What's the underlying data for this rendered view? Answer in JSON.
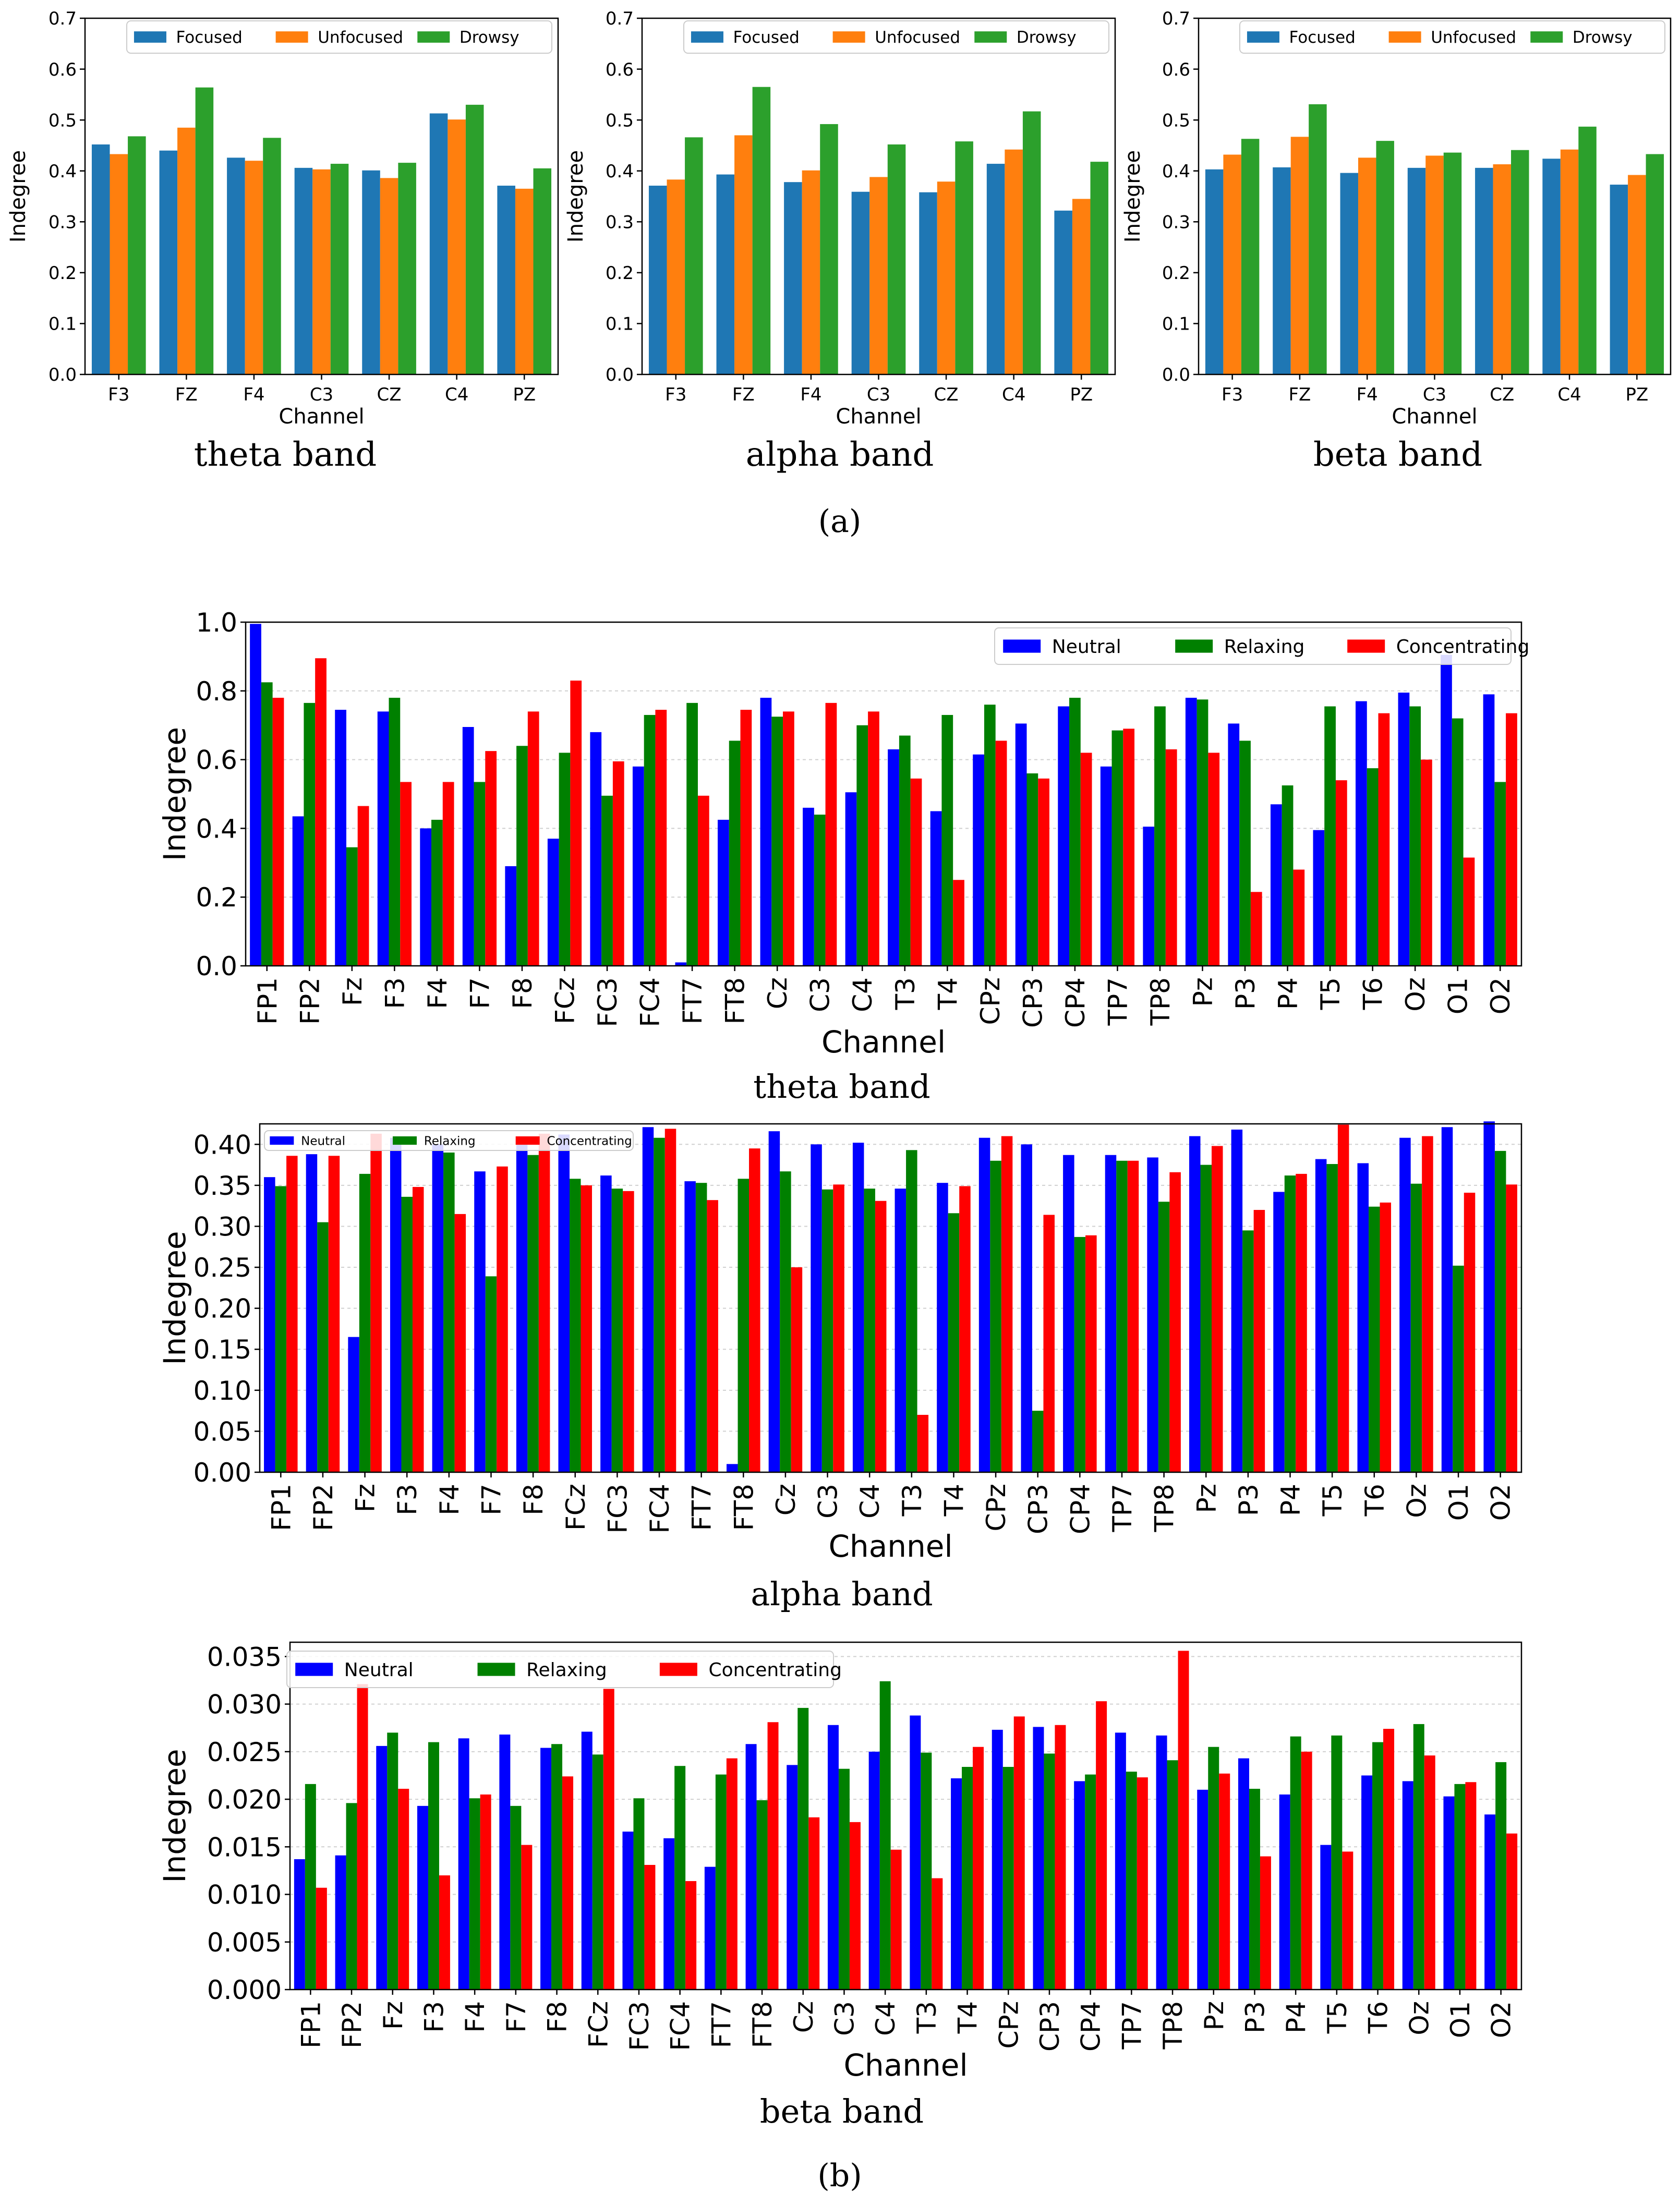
{
  "figure_labels": {
    "a": "(a)",
    "b": "(b)"
  },
  "colors": {
    "focused": "#1f77b4",
    "unfocused": "#ff7f0e",
    "drowsy": "#2ca02c",
    "neutral": "#0000ff",
    "relaxing": "#008000",
    "concentrating": "#ff0000"
  },
  "chart_data": [
    {
      "id": "a_theta",
      "type": "bar",
      "title": "",
      "caption": "theta band",
      "xlabel": "Channel",
      "ylabel": "Indegree",
      "ylim": [
        0,
        0.7
      ],
      "yticks": [
        "0.0",
        "0.1",
        "0.2",
        "0.3",
        "0.4",
        "0.5",
        "0.6",
        "0.7"
      ],
      "grid": false,
      "legend": "top-right, single row",
      "categories": [
        "F3",
        "FZ",
        "F4",
        "C3",
        "CZ",
        "C4",
        "PZ"
      ],
      "series": [
        {
          "name": "Focused",
          "color_key": "focused",
          "values": [
            0.452,
            0.44,
            0.426,
            0.406,
            0.401,
            0.513,
            0.371
          ]
        },
        {
          "name": "Unfocused",
          "color_key": "unfocused",
          "values": [
            0.433,
            0.485,
            0.42,
            0.403,
            0.386,
            0.501,
            0.365
          ]
        },
        {
          "name": "Drowsy",
          "color_key": "drowsy",
          "values": [
            0.468,
            0.564,
            0.465,
            0.414,
            0.416,
            0.53,
            0.405
          ]
        }
      ]
    },
    {
      "id": "a_alpha",
      "type": "bar",
      "title": "",
      "caption": "alpha band",
      "xlabel": "Channel",
      "ylabel": "Indegree",
      "ylim": [
        0,
        0.7
      ],
      "yticks": [
        "0.0",
        "0.1",
        "0.2",
        "0.3",
        "0.4",
        "0.5",
        "0.6",
        "0.7"
      ],
      "grid": false,
      "legend": "top-right, single row",
      "categories": [
        "F3",
        "FZ",
        "F4",
        "C3",
        "CZ",
        "C4",
        "PZ"
      ],
      "series": [
        {
          "name": "Focused",
          "color_key": "focused",
          "values": [
            0.371,
            0.393,
            0.378,
            0.359,
            0.358,
            0.414,
            0.322
          ]
        },
        {
          "name": "Unfocused",
          "color_key": "unfocused",
          "values": [
            0.383,
            0.47,
            0.401,
            0.388,
            0.379,
            0.442,
            0.345
          ]
        },
        {
          "name": "Drowsy",
          "color_key": "drowsy",
          "values": [
            0.466,
            0.565,
            0.492,
            0.452,
            0.458,
            0.517,
            0.418
          ]
        }
      ]
    },
    {
      "id": "a_beta",
      "type": "bar",
      "title": "",
      "caption": "beta band",
      "xlabel": "Channel",
      "ylabel": "Indegree",
      "ylim": [
        0,
        0.7
      ],
      "yticks": [
        "0.0",
        "0.1",
        "0.2",
        "0.3",
        "0.4",
        "0.5",
        "0.6",
        "0.7"
      ],
      "grid": false,
      "legend": "top-right, single row",
      "categories": [
        "F3",
        "FZ",
        "F4",
        "C3",
        "CZ",
        "C4",
        "PZ"
      ],
      "series": [
        {
          "name": "Focused",
          "color_key": "focused",
          "values": [
            0.403,
            0.407,
            0.396,
            0.406,
            0.406,
            0.424,
            0.373
          ]
        },
        {
          "name": "Unfocused",
          "color_key": "unfocused",
          "values": [
            0.432,
            0.467,
            0.426,
            0.43,
            0.413,
            0.442,
            0.392
          ]
        },
        {
          "name": "Drowsy",
          "color_key": "drowsy",
          "values": [
            0.463,
            0.531,
            0.459,
            0.436,
            0.441,
            0.487,
            0.433
          ]
        }
      ]
    },
    {
      "id": "b_theta",
      "type": "bar",
      "title": "",
      "caption": "theta band",
      "xlabel": "Channel",
      "ylabel": "Indegree",
      "ylim": [
        0,
        1.0
      ],
      "yticks": [
        "0.0",
        "0.2",
        "0.4",
        "0.6",
        "0.8",
        "1.0"
      ],
      "grid": true,
      "legend": "top-right, single row",
      "categories": [
        "FP1",
        "FP2",
        "Fz",
        "F3",
        "F4",
        "F7",
        "F8",
        "FCz",
        "FC3",
        "FC4",
        "FT7",
        "FT8",
        "Cz",
        "C3",
        "C4",
        "T3",
        "T4",
        "CPz",
        "CP3",
        "CP4",
        "TP7",
        "TP8",
        "Pz",
        "P3",
        "P4",
        "T5",
        "T6",
        "Oz",
        "O1",
        "O2"
      ],
      "series": [
        {
          "name": "Neutral",
          "color_key": "neutral",
          "values": [
            0.995,
            0.435,
            0.745,
            0.74,
            0.4,
            0.695,
            0.29,
            0.37,
            0.68,
            0.58,
            0.01,
            0.425,
            0.78,
            0.46,
            0.505,
            0.63,
            0.45,
            0.615,
            0.705,
            0.755,
            0.58,
            0.405,
            0.78,
            0.705,
            0.47,
            0.395,
            0.77,
            0.795,
            0.905,
            0.79
          ]
        },
        {
          "name": "Relaxing",
          "color_key": "relaxing",
          "values": [
            0.825,
            0.765,
            0.345,
            0.78,
            0.425,
            0.535,
            0.64,
            0.62,
            0.495,
            0.73,
            0.765,
            0.655,
            0.725,
            0.44,
            0.7,
            0.67,
            0.73,
            0.76,
            0.56,
            0.78,
            0.685,
            0.755,
            0.775,
            0.655,
            0.525,
            0.755,
            0.575,
            0.755,
            0.72,
            0.535
          ]
        },
        {
          "name": "Concentrating",
          "color_key": "concentrating",
          "values": [
            0.78,
            0.895,
            0.465,
            0.535,
            0.535,
            0.625,
            0.74,
            0.83,
            0.595,
            0.745,
            0.495,
            0.745,
            0.74,
            0.765,
            0.74,
            0.545,
            0.25,
            0.655,
            0.545,
            0.62,
            0.69,
            0.63,
            0.62,
            0.215,
            0.28,
            0.54,
            0.735,
            0.6,
            0.315,
            0.735
          ]
        }
      ]
    },
    {
      "id": "b_alpha",
      "type": "bar",
      "title": "",
      "caption": "alpha band",
      "xlabel": "Channel",
      "ylabel": "Indegree",
      "ylim": [
        0,
        0.425
      ],
      "yticks": [
        "0.00",
        "0.05",
        "0.10",
        "0.15",
        "0.20",
        "0.25",
        "0.30",
        "0.35",
        "0.40"
      ],
      "grid": true,
      "legend": "top-left, single row, small",
      "categories": [
        "FP1",
        "FP2",
        "Fz",
        "F3",
        "F4",
        "F7",
        "F8",
        "FCz",
        "FC3",
        "FC4",
        "FT7",
        "FT8",
        "Cz",
        "C3",
        "C4",
        "T3",
        "T4",
        "CPz",
        "CP3",
        "CP4",
        "TP7",
        "TP8",
        "Pz",
        "P3",
        "P4",
        "T5",
        "T6",
        "Oz",
        "O1",
        "O2"
      ],
      "series": [
        {
          "name": "Neutral",
          "color_key": "neutral",
          "values": [
            0.36,
            0.388,
            0.165,
            0.408,
            0.4,
            0.367,
            0.405,
            0.412,
            0.362,
            0.421,
            0.355,
            0.01,
            0.416,
            0.4,
            0.402,
            0.346,
            0.353,
            0.408,
            0.4,
            0.387,
            0.387,
            0.384,
            0.41,
            0.418,
            0.342,
            0.382,
            0.377,
            0.408,
            0.421,
            0.428
          ]
        },
        {
          "name": "Relaxing",
          "color_key": "relaxing",
          "values": [
            0.349,
            0.305,
            0.364,
            0.336,
            0.39,
            0.239,
            0.387,
            0.358,
            0.346,
            0.408,
            0.353,
            0.358,
            0.367,
            0.345,
            0.346,
            0.393,
            0.316,
            0.38,
            0.075,
            0.287,
            0.38,
            0.33,
            0.375,
            0.295,
            0.362,
            0.376,
            0.324,
            0.352,
            0.252,
            0.392
          ]
        },
        {
          "name": "Concentrating",
          "color_key": "concentrating",
          "values": [
            0.386,
            0.386,
            0.413,
            0.348,
            0.315,
            0.373,
            0.413,
            0.35,
            0.343,
            0.419,
            0.332,
            0.395,
            0.25,
            0.351,
            0.331,
            0.07,
            0.349,
            0.41,
            0.314,
            0.289,
            0.38,
            0.366,
            0.398,
            0.32,
            0.364,
            0.424,
            0.329,
            0.41,
            0.341,
            0.351
          ]
        }
      ]
    },
    {
      "id": "b_beta",
      "type": "bar",
      "title": "",
      "caption": "beta band",
      "xlabel": "Channel",
      "ylabel": "Indegree",
      "ylim": [
        0,
        0.0365
      ],
      "yticks": [
        "0.000",
        "0.005",
        "0.010",
        "0.015",
        "0.020",
        "0.025",
        "0.030",
        "0.035"
      ],
      "grid": true,
      "legend": "top-left, single row",
      "categories": [
        "FP1",
        "FP2",
        "Fz",
        "F3",
        "F4",
        "F7",
        "F8",
        "FCz",
        "FC3",
        "FC4",
        "FT7",
        "FT8",
        "Cz",
        "C3",
        "C4",
        "T3",
        "T4",
        "CPz",
        "CP3",
        "CP4",
        "TP7",
        "TP8",
        "Pz",
        "P3",
        "P4",
        "T5",
        "T6",
        "Oz",
        "O1",
        "O2"
      ],
      "series": [
        {
          "name": "Neutral",
          "color_key": "neutral",
          "values": [
            0.0137,
            0.0141,
            0.0256,
            0.0193,
            0.0264,
            0.0268,
            0.0254,
            0.0271,
            0.0166,
            0.0159,
            0.0129,
            0.0258,
            0.0236,
            0.0278,
            0.025,
            0.0288,
            0.0222,
            0.0273,
            0.0276,
            0.0219,
            0.027,
            0.0267,
            0.021,
            0.0243,
            0.0205,
            0.0152,
            0.0225,
            0.0219,
            0.0203,
            0.0184
          ]
        },
        {
          "name": "Relaxing",
          "color_key": "relaxing",
          "values": [
            0.0216,
            0.0196,
            0.027,
            0.026,
            0.0201,
            0.0193,
            0.0258,
            0.0247,
            0.0201,
            0.0235,
            0.0226,
            0.0199,
            0.0296,
            0.0232,
            0.0324,
            0.0249,
            0.0234,
            0.0234,
            0.0248,
            0.0226,
            0.0229,
            0.0241,
            0.0255,
            0.0211,
            0.0266,
            0.0267,
            0.026,
            0.0279,
            0.0216,
            0.0239
          ]
        },
        {
          "name": "Concentrating",
          "color_key": "concentrating",
          "values": [
            0.0107,
            0.0321,
            0.0211,
            0.012,
            0.0205,
            0.0152,
            0.0224,
            0.0316,
            0.0131,
            0.0114,
            0.0243,
            0.0281,
            0.0181,
            0.0176,
            0.0147,
            0.0117,
            0.0255,
            0.0287,
            0.0278,
            0.0303,
            0.0223,
            0.0356,
            0.0227,
            0.014,
            0.025,
            0.0145,
            0.0274,
            0.0246,
            0.0218,
            0.0164
          ]
        }
      ]
    }
  ]
}
